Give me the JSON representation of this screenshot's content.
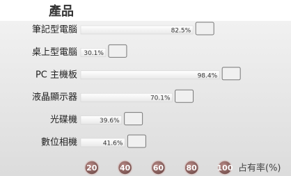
{
  "chart_data": {
    "type": "bar",
    "orientation": "horizontal",
    "title": "產品",
    "categories": [
      "筆記型電腦",
      "桌上型電腦",
      "PC 主機板",
      "液晶顯示器",
      "光碟機",
      "數位相機"
    ],
    "values": [
      82.5,
      30.1,
      98.4,
      70.1,
      39.6,
      41.6
    ],
    "value_labels": [
      "82.5%",
      "30.1%",
      "98.4%",
      "70.1%",
      "39.6%",
      "41.6%"
    ],
    "color": "#ffffff",
    "xlim": [
      0,
      100
    ],
    "xticks": [
      20,
      40,
      60,
      80,
      100
    ],
    "xlabel": "占有率(%)"
  }
}
